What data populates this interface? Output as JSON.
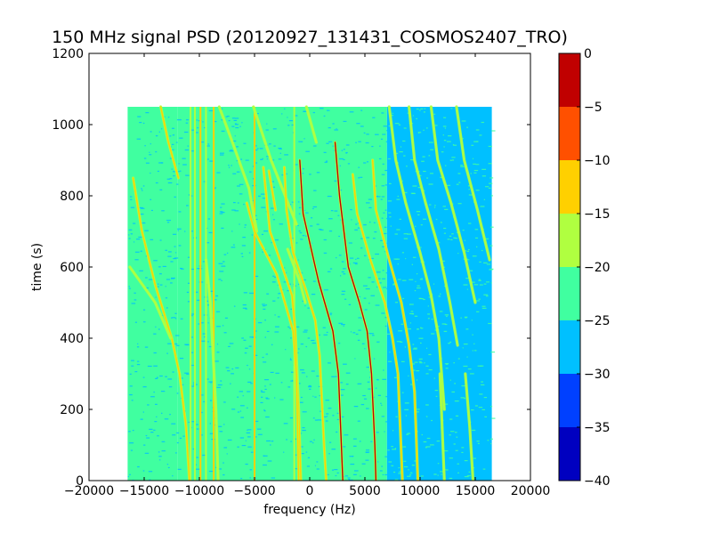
{
  "chart_data": {
    "type": "heatmap",
    "title": "150 MHz signal PSD (20120927_131431_COSMOS2407_TRO)",
    "xlabel": "frequency (Hz)",
    "ylabel": "time (s)",
    "xlim": [
      -20000,
      20000
    ],
    "ylim": [
      0,
      1200
    ],
    "xticks": [
      -20000,
      -15000,
      -10000,
      -5000,
      0,
      5000,
      10000,
      15000,
      20000
    ],
    "xtick_labels": [
      "−20000",
      "−15000",
      "−10000",
      "−5000",
      "0",
      "5000",
      "10000",
      "15000",
      "20000"
    ],
    "yticks": [
      0,
      200,
      400,
      600,
      800,
      1000,
      1200
    ],
    "ytick_labels": [
      "0",
      "200",
      "400",
      "600",
      "800",
      "1000",
      "1200"
    ],
    "data_extent": {
      "x": [
        -16500,
        16500
      ],
      "y": [
        0,
        1050
      ]
    },
    "background_regions": [
      {
        "x": [
          -16500,
          -15000
        ],
        "level": -25
      },
      {
        "x": [
          -15000,
          -12000
        ],
        "level": -24
      },
      {
        "x": [
          -12000,
          7000
        ],
        "level": -22
      },
      {
        "x": [
          7000,
          16500
        ],
        "level": -27
      }
    ],
    "traces": [
      {
        "points": [
          [
            -13500,
            1050
          ],
          [
            -12800,
            950
          ],
          [
            -11900,
            850
          ]
        ],
        "level": -15
      },
      {
        "points": [
          [
            -16000,
            850
          ],
          [
            -15200,
            700
          ],
          [
            -14000,
            550
          ],
          [
            -12500,
            400
          ],
          [
            -11800,
            300
          ],
          [
            -11200,
            150
          ],
          [
            -10900,
            0
          ]
        ],
        "level": -15
      },
      {
        "points": [
          [
            -16300,
            600
          ],
          [
            -14000,
            500
          ],
          [
            -12600,
            400
          ]
        ],
        "level": -17
      },
      {
        "points": [
          [
            -9400,
            620
          ],
          [
            -9000,
            500
          ],
          [
            -8800,
            380
          ],
          [
            -8500,
            200
          ],
          [
            -8300,
            0
          ]
        ],
        "level": -17
      },
      {
        "points": [
          [
            -8200,
            1050
          ],
          [
            -7000,
            950
          ],
          [
            -5500,
            820
          ],
          [
            -4800,
            700
          ]
        ],
        "level": -17
      },
      {
        "points": [
          [
            -5100,
            1050
          ],
          [
            -3500,
            900
          ],
          [
            -1200,
            720
          ]
        ],
        "level": -18
      },
      {
        "points": [
          [
            -4200,
            880
          ],
          [
            -3600,
            700
          ],
          [
            -2700,
            620
          ],
          [
            -1600,
            520
          ],
          [
            -1300,
            420
          ],
          [
            -1000,
            200
          ],
          [
            -800,
            0
          ]
        ],
        "level": -12
      },
      {
        "points": [
          [
            -2300,
            880
          ],
          [
            -2100,
            760
          ],
          [
            -1500,
            640
          ],
          [
            -400,
            540
          ],
          [
            500,
            450
          ],
          [
            900,
            350
          ],
          [
            1300,
            100
          ],
          [
            1500,
            0
          ]
        ],
        "level": -12
      },
      {
        "points": [
          [
            -2000,
            650
          ],
          [
            -900,
            560
          ],
          [
            -400,
            500
          ]
        ],
        "level": -16
      },
      {
        "points": [
          [
            -5700,
            780
          ],
          [
            -5000,
            700
          ],
          [
            -3000,
            580
          ],
          [
            -1500,
            420
          ],
          [
            -1200,
            300
          ],
          [
            -1000,
            0
          ]
        ],
        "level": -15
      },
      {
        "points": [
          [
            -3700,
            870
          ],
          [
            -3100,
            760
          ]
        ],
        "level": -15
      },
      {
        "points": [
          [
            -900,
            900
          ],
          [
            -600,
            750
          ],
          [
            800,
            560
          ],
          [
            2100,
            420
          ],
          [
            2600,
            300
          ],
          [
            2800,
            150
          ],
          [
            3000,
            0
          ]
        ],
        "level": -5
      },
      {
        "points": [
          [
            -300,
            1050
          ],
          [
            600,
            950
          ]
        ],
        "level": -17
      },
      {
        "points": [
          [
            2300,
            950
          ],
          [
            2700,
            800
          ],
          [
            3500,
            600
          ],
          [
            4500,
            500
          ],
          [
            5200,
            420
          ],
          [
            5600,
            300
          ],
          [
            5900,
            100
          ],
          [
            6000,
            0
          ]
        ],
        "level": -5
      },
      {
        "points": [
          [
            3900,
            860
          ],
          [
            4300,
            750
          ],
          [
            5500,
            620
          ],
          [
            6800,
            500
          ],
          [
            7500,
            400
          ],
          [
            8000,
            300
          ],
          [
            8400,
            0
          ]
        ],
        "level": -12
      },
      {
        "points": [
          [
            5700,
            900
          ],
          [
            6000,
            760
          ],
          [
            7200,
            620
          ],
          [
            8300,
            500
          ],
          [
            9000,
            380
          ],
          [
            9500,
            250
          ],
          [
            9800,
            0
          ]
        ],
        "level": -15
      },
      {
        "points": [
          [
            7200,
            1050
          ],
          [
            7800,
            900
          ],
          [
            8700,
            780
          ],
          [
            10000,
            640
          ],
          [
            11000,
            520
          ],
          [
            11700,
            400
          ],
          [
            12200,
            200
          ]
        ],
        "level": -17
      },
      {
        "points": [
          [
            9000,
            1050
          ],
          [
            9500,
            900
          ],
          [
            10500,
            780
          ],
          [
            11700,
            650
          ],
          [
            12700,
            500
          ],
          [
            13400,
            380
          ]
        ],
        "level": -17
      },
      {
        "points": [
          [
            11000,
            1050
          ],
          [
            11600,
            900
          ],
          [
            12800,
            780
          ],
          [
            14000,
            640
          ],
          [
            15000,
            500
          ]
        ],
        "level": -17
      },
      {
        "points": [
          [
            13300,
            1050
          ],
          [
            14000,
            900
          ],
          [
            15200,
            760
          ],
          [
            16300,
            620
          ]
        ],
        "level": -17
      },
      {
        "points": [
          [
            12200,
            0
          ],
          [
            12000,
            150
          ],
          [
            11800,
            300
          ]
        ],
        "level": -17
      },
      {
        "points": [
          [
            14800,
            0
          ],
          [
            14500,
            150
          ],
          [
            14100,
            300
          ]
        ],
        "level": -17
      }
    ],
    "vertical_lines": [
      {
        "x": -10800,
        "level": -17
      },
      {
        "x": -10400,
        "level": -17
      },
      {
        "x": -9900,
        "level": -15
      },
      {
        "x": -9400,
        "level": -17
      },
      {
        "x": -8700,
        "level": -12
      },
      {
        "x": -5000,
        "level": -15
      },
      {
        "x": -1400,
        "level": -18
      }
    ],
    "colorbar": {
      "levels": [
        -40,
        -35,
        -30,
        -25,
        -20,
        -15,
        -10,
        -5,
        0
      ],
      "labels": [
        "−40",
        "−35",
        "−30",
        "−25",
        "−20",
        "−15",
        "−10",
        "−5",
        "0"
      ],
      "colors": [
        "#0000c0",
        "#0040ff",
        "#00c0ff",
        "#40ffa0",
        "#b0ff40",
        "#ffd000",
        "#ff5000",
        "#c00000"
      ]
    }
  }
}
